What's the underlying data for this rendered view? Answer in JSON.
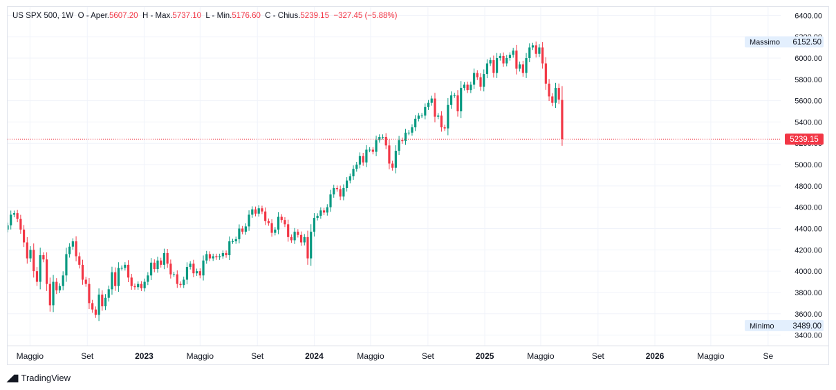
{
  "legend": {
    "symbol": "US SPX 500,",
    "interval": "1W",
    "open_label": "O - Aper.",
    "open_value": "5607.20",
    "high_label": "H - Max.",
    "high_value": "5737.10",
    "low_label": "L - Min.",
    "low_value": "5176.60",
    "close_label": "C - Chius.",
    "close_value": "5239.15",
    "change": "−327.45 (−5.88%)"
  },
  "branding": {
    "name": "TradingView",
    "icon": "tradingview-logo-icon"
  },
  "colors": {
    "up": "#089981",
    "down": "#f23645",
    "max_label_bg": "#e3effd",
    "last_price_bg": "#f23645",
    "grid": "#f0f3fa"
  },
  "chart_data": {
    "type": "candlestick",
    "interval": "1W",
    "ylim": [
      3300,
      6480
    ],
    "y_ticks": [
      3400,
      3600,
      3800,
      4000,
      4200,
      4400,
      4600,
      4800,
      5000,
      5200,
      5400,
      5600,
      5800,
      6000,
      6200,
      6400
    ],
    "y_tick_labels": [
      "3400.00",
      "3600.00",
      "3800.00",
      "4000.00",
      "4200.00",
      "4400.00",
      "4600.00",
      "4800.00",
      "5000.00",
      "5200.00",
      "5400.00",
      "5600.00",
      "5800.00",
      "6000.00",
      "6200.00",
      "6400.00"
    ],
    "x_range": [
      "2022-03-14",
      "2026-09-28"
    ],
    "x_ticks": [
      {
        "date": "2022-05-01",
        "label": "Maggio",
        "bold": false
      },
      {
        "date": "2022-09-01",
        "label": "Set",
        "bold": false
      },
      {
        "date": "2023-01-01",
        "label": "2023",
        "bold": true
      },
      {
        "date": "2023-05-01",
        "label": "Maggio",
        "bold": false
      },
      {
        "date": "2023-09-01",
        "label": "Set",
        "bold": false
      },
      {
        "date": "2024-01-01",
        "label": "2024",
        "bold": true
      },
      {
        "date": "2024-05-01",
        "label": "Maggio",
        "bold": false
      },
      {
        "date": "2024-09-01",
        "label": "Set",
        "bold": false
      },
      {
        "date": "2025-01-01",
        "label": "2025",
        "bold": true
      },
      {
        "date": "2025-05-01",
        "label": "Maggio",
        "bold": false
      },
      {
        "date": "2025-09-01",
        "label": "Set",
        "bold": false
      },
      {
        "date": "2026-01-01",
        "label": "2026",
        "bold": true
      },
      {
        "date": "2026-05-01",
        "label": "Maggio",
        "bold": false
      },
      {
        "date": "2026-09-01",
        "label": "Se",
        "bold": false
      }
    ],
    "markers": [
      {
        "label": "Massimo",
        "value": 6152.5,
        "value_label": "6152.50"
      },
      {
        "label": "Minimo",
        "value": 3489.0,
        "value_label": "3489.00"
      }
    ],
    "last_price": {
      "value": 5239.15,
      "label": "5239.15"
    },
    "series": [
      {
        "name": "US SPX 500",
        "start_date": "2022-03-14",
        "close": [
          4430,
          4530,
          4545,
          4490,
          4390,
          4270,
          4120,
          4200,
          4000,
          3900,
          4150,
          4110,
          3880,
          3680,
          3900,
          3820,
          3860,
          3960,
          4160,
          4230,
          4280,
          4140,
          4060,
          3920,
          3880,
          3700,
          3640,
          3590,
          3780,
          3670,
          3750,
          3830,
          3990,
          3860,
          4030,
          4030,
          4060,
          3940,
          3860,
          3850,
          3880,
          3840,
          3900,
          3960,
          4080,
          4020,
          4100,
          4060,
          4170,
          4070,
          3970,
          3970,
          3880,
          3870,
          3920,
          4040,
          4070,
          3980,
          4000,
          3960,
          4100,
          4160,
          4120,
          4140,
          4130,
          4140,
          4170,
          4150,
          4280,
          4280,
          4300,
          4400,
          4370,
          4420,
          4530,
          4580,
          4540,
          4590,
          4560,
          4470,
          4450,
          4360,
          4390,
          4510,
          4480,
          4440,
          4320,
          4290,
          4370,
          4340,
          4270,
          4320,
          4120,
          4370,
          4500,
          4520,
          4570,
          4550,
          4600,
          4720,
          4780,
          4770,
          4700,
          4780,
          4850,
          4890,
          4960,
          5000,
          5080,
          5020,
          5140,
          5140,
          5120,
          5230,
          5260,
          5260,
          5180,
          5010,
          4970,
          5130,
          5230,
          5220,
          5300,
          5300,
          5350,
          5430,
          5460,
          5460,
          5540,
          5580,
          5620,
          5450,
          5460,
          5350,
          5340,
          5560,
          5650,
          5650,
          5500,
          5720,
          5750,
          5700,
          5750,
          5860,
          5820,
          5730,
          5850,
          5950,
          5980,
          5860,
          6000,
          6020,
          5950,
          6000,
          6030,
          6070,
          5900,
          5940,
          5860,
          6000,
          6100,
          6120,
          6040,
          6100,
          5950,
          5760,
          5640,
          5580,
          5720,
          5610,
          5239.15
        ]
      }
    ]
  }
}
